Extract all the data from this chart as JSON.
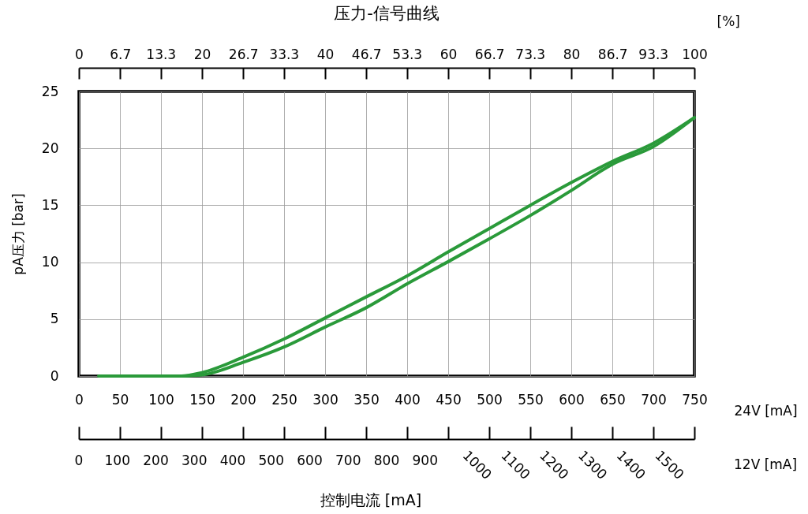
{
  "chart_data": {
    "type": "line",
    "title": "压力-信号曲线",
    "ylabel": "pA压力 [bar]",
    "xlabel": "24V [mA]",
    "x2label": "[%]",
    "annotations": [
      "控制电流 [mA]",
      "12V [mA]",
      "0",
      "100",
      "200",
      "300",
      "400",
      "500",
      "600",
      "700",
      "800",
      "900",
      "1000",
      "1100",
      "1200",
      "1300",
      "1400",
      "1500"
    ],
    "xlim": [
      0,
      750
    ],
    "xticks": [
      0,
      50,
      100,
      150,
      200,
      250,
      300,
      350,
      400,
      450,
      500,
      550,
      600,
      650,
      700,
      750
    ],
    "x2lim": [
      0,
      100
    ],
    "x2ticks": [
      0,
      6.7,
      13.3,
      20,
      26.7,
      33.3,
      40,
      46.7,
      53.3,
      60,
      66.7,
      73.3,
      80,
      86.7,
      93.3,
      100
    ],
    "ylim": [
      0,
      25
    ],
    "yticks": [
      0,
      5,
      10,
      15,
      20,
      25
    ],
    "grid": true,
    "line_style": "solid",
    "marker": "none",
    "series": [
      {
        "color": "#2a9a3a",
        "x": [
          24,
          50,
          75,
          100,
          125,
          150,
          200,
          250,
          300,
          350,
          400,
          450,
          500,
          550,
          600,
          650,
          700,
          750
        ],
        "values": [
          0,
          0,
          0,
          0,
          0,
          0.3,
          1.65,
          3.25,
          5.1,
          6.95,
          8.8,
          10.9,
          12.95,
          15.0,
          17.0,
          18.85,
          20.45,
          22.7
        ]
      },
      {
        "color": "#2a9a3a",
        "x": [
          125,
          150,
          200,
          250,
          300,
          350,
          400,
          450,
          500,
          550,
          600,
          650,
          700,
          750
        ],
        "values": [
          0,
          0.1,
          1.2,
          2.55,
          4.3,
          6.0,
          8.1,
          10.05,
          12.05,
          14.1,
          16.3,
          18.6,
          20.15,
          22.7
        ]
      }
    ]
  }
}
